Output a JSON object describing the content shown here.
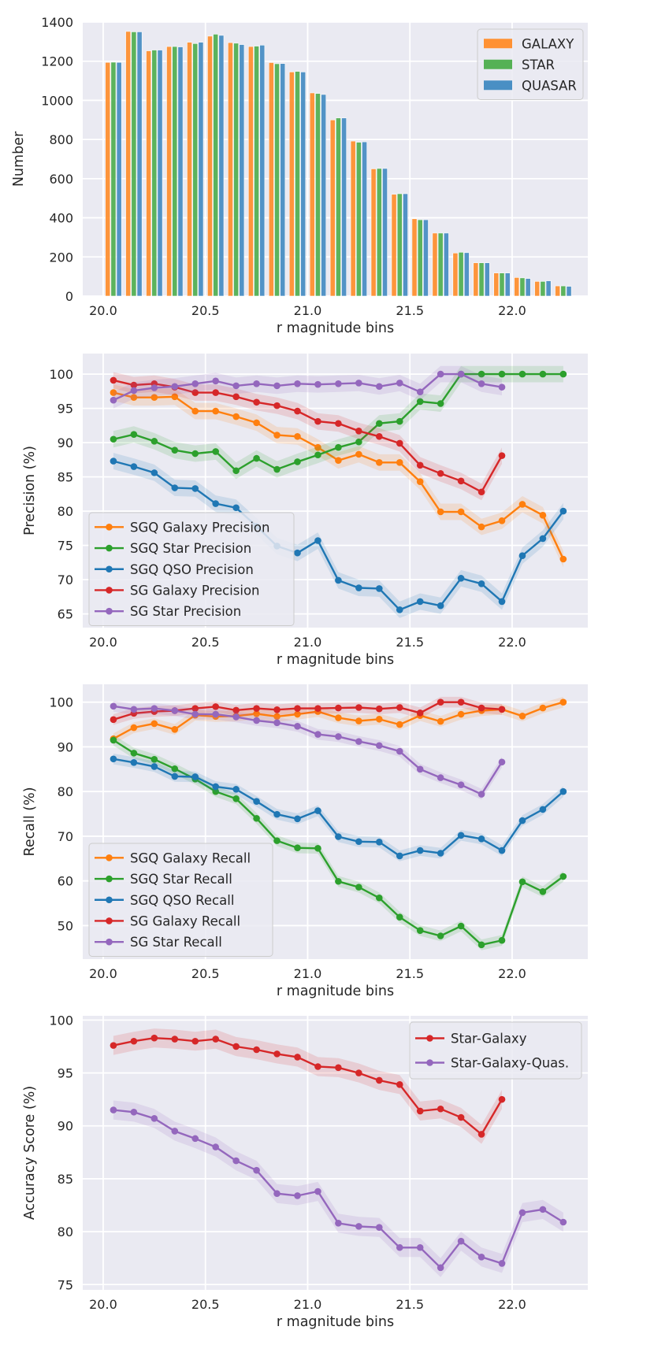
{
  "chart_data": [
    {
      "type": "bar",
      "title": "",
      "xlabel": "r magnitude bins",
      "ylabel": "Number",
      "xlim": [
        19.9,
        22.37
      ],
      "ylim": [
        0,
        1400
      ],
      "xticks": [
        "20.0",
        "20.5",
        "21.0",
        "21.5",
        "22.0"
      ],
      "xtick_values": [
        20.0,
        20.5,
        21.0,
        21.5,
        22.0
      ],
      "yticks": [
        "0",
        "200",
        "400",
        "600",
        "800",
        "1000",
        "1200",
        "1400"
      ],
      "ytick_values": [
        0,
        200,
        400,
        600,
        800,
        1000,
        1200,
        1400
      ],
      "grid": true,
      "legend_position": "top-right",
      "x": [
        20.05,
        20.15,
        20.25,
        20.35,
        20.45,
        20.55,
        20.65,
        20.75,
        20.85,
        20.95,
        21.05,
        21.15,
        21.25,
        21.35,
        21.45,
        21.55,
        21.65,
        21.75,
        21.85,
        21.95,
        22.05,
        22.15,
        22.25
      ],
      "series": [
        {
          "name": "GALAXY",
          "color": "#ff9133",
          "values": [
            1194,
            1352,
            1253,
            1275,
            1297,
            1328,
            1295,
            1275,
            1193,
            1145,
            1038,
            900,
            792,
            650,
            520,
            395,
            322,
            220,
            170,
            118,
            95,
            75,
            52
          ]
        },
        {
          "name": "STAR",
          "color": "#55b155",
          "values": [
            1195,
            1350,
            1257,
            1275,
            1290,
            1338,
            1292,
            1277,
            1187,
            1148,
            1035,
            910,
            786,
            652,
            523,
            390,
            322,
            224,
            170,
            118,
            93,
            75,
            52
          ]
        },
        {
          "name": "QUASAR",
          "color": "#4a8fc4",
          "values": [
            1194,
            1350,
            1257,
            1273,
            1297,
            1332,
            1285,
            1282,
            1188,
            1145,
            1030,
            910,
            788,
            652,
            523,
            390,
            322,
            222,
            170,
            118,
            90,
            78,
            50
          ]
        }
      ]
    },
    {
      "type": "line",
      "title": "",
      "xlabel": "r magnitude bins",
      "ylabel": "Precision (%)",
      "xlim": [
        19.9,
        22.37
      ],
      "ylim": [
        63,
        103
      ],
      "xticks": [
        "20.0",
        "20.5",
        "21.0",
        "21.5",
        "22.0"
      ],
      "xtick_values": [
        20.0,
        20.5,
        21.0,
        21.5,
        22.0
      ],
      "yticks": [
        "65",
        "70",
        "75",
        "80",
        "85",
        "90",
        "95",
        "100"
      ],
      "ytick_values": [
        65,
        70,
        75,
        80,
        85,
        90,
        95,
        100
      ],
      "grid": true,
      "legend_position": "lower-left",
      "x": [
        20.05,
        20.15,
        20.25,
        20.35,
        20.45,
        20.55,
        20.65,
        20.75,
        20.85,
        20.95,
        21.05,
        21.15,
        21.25,
        21.35,
        21.45,
        21.55,
        21.65,
        21.75,
        21.85,
        21.95,
        22.05,
        22.15,
        22.25
      ],
      "series": [
        {
          "name": "SGQ Galaxy Precision",
          "color": "#ff7f0e",
          "values": [
            97.3,
            96.6,
            96.6,
            96.7,
            94.6,
            94.6,
            93.8,
            92.9,
            91.1,
            90.9,
            89.3,
            87.4,
            88.3,
            87.1,
            87.1,
            84.3,
            79.9,
            79.9,
            77.7,
            78.6,
            81.0,
            79.4,
            73.0
          ]
        },
        {
          "name": "SGQ Star Precision",
          "color": "#2ca02c",
          "values": [
            90.5,
            91.2,
            90.2,
            88.9,
            88.4,
            88.7,
            85.9,
            87.7,
            86.1,
            87.2,
            88.2,
            89.3,
            90.1,
            92.8,
            93.1,
            96.0,
            95.7,
            100,
            100,
            100,
            100,
            100,
            100
          ]
        },
        {
          "name": "SGQ QSO Precision",
          "color": "#1f77b4",
          "values": [
            87.3,
            86.5,
            85.6,
            83.4,
            83.3,
            81.1,
            80.5,
            77.8,
            74.9,
            73.9,
            75.7,
            69.9,
            68.8,
            68.7,
            65.6,
            66.8,
            66.2,
            70.2,
            69.4,
            66.8,
            73.5,
            76.0,
            80.0
          ]
        },
        {
          "name": "SG Galaxy Precision",
          "color": "#d62728",
          "values": [
            99.1,
            98.4,
            98.6,
            98.1,
            97.3,
            97.3,
            96.7,
            95.9,
            95.4,
            94.6,
            93.1,
            92.8,
            91.7,
            90.9,
            89.9,
            86.7,
            85.5,
            84.4,
            82.8,
            88.1,
            null,
            null,
            null
          ]
        },
        {
          "name": "SG Star Precision",
          "color": "#9467bd",
          "values": [
            96.2,
            97.6,
            98.0,
            98.2,
            98.6,
            99.0,
            98.3,
            98.6,
            98.3,
            98.6,
            98.5,
            98.6,
            98.7,
            98.2,
            98.7,
            97.4,
            100,
            100,
            98.6,
            98.1,
            null,
            null,
            null
          ]
        }
      ]
    },
    {
      "type": "line",
      "title": "",
      "xlabel": "r magnitude bins",
      "ylabel": "Recall (%)",
      "xlim": [
        19.9,
        22.37
      ],
      "ylim": [
        42.5,
        104
      ],
      "xticks": [
        "20.0",
        "20.5",
        "21.0",
        "21.5",
        "22.0"
      ],
      "xtick_values": [
        20.0,
        20.5,
        21.0,
        21.5,
        22.0
      ],
      "yticks": [
        "50",
        "60",
        "70",
        "80",
        "90",
        "100"
      ],
      "ytick_values": [
        50,
        60,
        70,
        80,
        90,
        100
      ],
      "grid": true,
      "legend_position": "lower-left",
      "x": [
        20.05,
        20.15,
        20.25,
        20.35,
        20.45,
        20.55,
        20.65,
        20.75,
        20.85,
        20.95,
        21.05,
        21.15,
        21.25,
        21.35,
        21.45,
        21.55,
        21.65,
        21.75,
        21.85,
        21.95,
        22.05,
        22.15,
        22.25
      ],
      "series": [
        {
          "name": "SGQ Galaxy Recall",
          "color": "#ff7f0e",
          "values": [
            91.8,
            94.3,
            95.2,
            93.9,
            97.1,
            96.8,
            96.9,
            97.4,
            96.8,
            97.3,
            97.9,
            96.5,
            95.8,
            96.2,
            95.0,
            97.0,
            95.7,
            97.3,
            98.1,
            98.4,
            96.9,
            98.7,
            100
          ]
        },
        {
          "name": "SGQ Star Recall",
          "color": "#2ca02c",
          "values": [
            91.5,
            88.6,
            87.2,
            85.1,
            82.8,
            80.0,
            78.4,
            74.0,
            69.0,
            67.4,
            67.3,
            59.9,
            58.6,
            56.2,
            51.9,
            48.9,
            47.7,
            49.9,
            45.7,
            46.7,
            59.8,
            57.6,
            61.0
          ]
        },
        {
          "name": "SGQ QSO Recall",
          "color": "#1f77b4",
          "values": [
            87.3,
            86.5,
            85.6,
            83.4,
            83.3,
            81.1,
            80.5,
            77.8,
            74.9,
            73.9,
            75.7,
            69.9,
            68.8,
            68.7,
            65.6,
            66.8,
            66.2,
            70.2,
            69.4,
            66.8,
            73.5,
            76.0,
            80.0
          ]
        },
        {
          "name": "SG Galaxy Recall",
          "color": "#d62728",
          "values": [
            96.1,
            97.5,
            97.9,
            98.1,
            98.6,
            99.0,
            98.2,
            98.6,
            98.3,
            98.6,
            98.6,
            98.7,
            98.8,
            98.5,
            98.8,
            97.6,
            100,
            100,
            98.7,
            98.4,
            null,
            null,
            null
          ]
        },
        {
          "name": "SG Star Recall",
          "color": "#9467bd",
          "values": [
            99.1,
            98.4,
            98.6,
            98.1,
            97.3,
            97.3,
            96.7,
            95.9,
            95.4,
            94.6,
            92.8,
            92.3,
            91.2,
            90.3,
            89.0,
            85.0,
            83.1,
            81.5,
            79.4,
            86.6,
            null,
            null,
            null
          ]
        }
      ]
    },
    {
      "type": "line",
      "title": "",
      "xlabel": "r magnitude bins",
      "ylabel": "Accuracy Score (%)",
      "xlim": [
        19.9,
        22.37
      ],
      "ylim": [
        74.5,
        100.4
      ],
      "xticks": [
        "20.0",
        "20.5",
        "21.0",
        "21.5",
        "22.0"
      ],
      "xtick_values": [
        20.0,
        20.5,
        21.0,
        21.5,
        22.0
      ],
      "yticks": [
        "75",
        "80",
        "85",
        "90",
        "95",
        "100"
      ],
      "ytick_values": [
        75,
        80,
        85,
        90,
        95,
        100
      ],
      "grid": true,
      "legend_position": "top-right",
      "x": [
        20.05,
        20.15,
        20.25,
        20.35,
        20.45,
        20.55,
        20.65,
        20.75,
        20.85,
        20.95,
        21.05,
        21.15,
        21.25,
        21.35,
        21.45,
        21.55,
        21.65,
        21.75,
        21.85,
        21.95,
        22.05,
        22.15,
        22.25
      ],
      "series": [
        {
          "name": "Star-Galaxy",
          "color": "#d62728",
          "values": [
            97.6,
            98.0,
            98.3,
            98.2,
            98.0,
            98.2,
            97.5,
            97.2,
            96.8,
            96.5,
            95.6,
            95.5,
            95.0,
            94.3,
            93.9,
            91.4,
            91.6,
            90.8,
            89.2,
            92.5,
            null,
            null,
            null
          ]
        },
        {
          "name": "Star-Galaxy-Quas.",
          "color": "#9467bd",
          "values": [
            91.5,
            91.3,
            90.7,
            89.5,
            88.8,
            88.0,
            86.7,
            85.8,
            83.6,
            83.4,
            83.8,
            80.8,
            80.5,
            80.4,
            78.5,
            78.5,
            76.6,
            79.1,
            77.6,
            77.0,
            81.8,
            82.1,
            80.9
          ]
        }
      ]
    }
  ]
}
